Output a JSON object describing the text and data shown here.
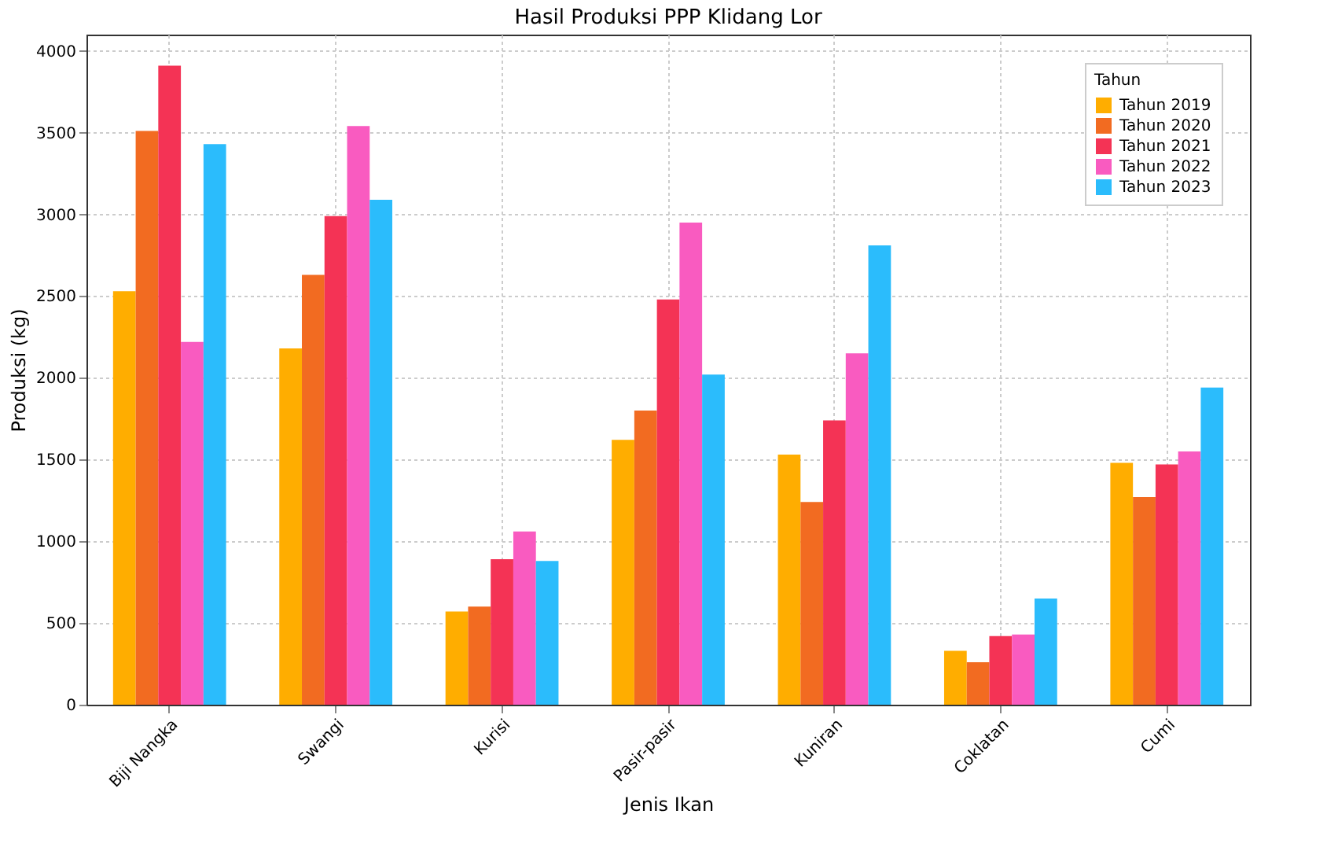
{
  "chart_data": {
    "type": "bar",
    "title": "Hasil Produksi PPP Klidang Lor",
    "xlabel": "Jenis Ikan",
    "ylabel": "Produksi (kg)",
    "legend_title": "Tahun",
    "categories": [
      "Biji Nangka",
      "Swangi",
      "Kurisi",
      "Pasir-pasir",
      "Kuniran",
      "Coklatan",
      "Cumi"
    ],
    "series": [
      {
        "name": "Tahun 2019",
        "color": "#ffad00",
        "values": [
          2530,
          2180,
          570,
          1620,
          1530,
          330,
          1480
        ]
      },
      {
        "name": "Tahun 2020",
        "color": "#f26b21",
        "values": [
          3510,
          2630,
          600,
          1800,
          1240,
          260,
          1270
        ]
      },
      {
        "name": "Tahun 2021",
        "color": "#f43355",
        "values": [
          3910,
          2990,
          890,
          2480,
          1740,
          420,
          1470
        ]
      },
      {
        "name": "Tahun 2022",
        "color": "#f95bc0",
        "values": [
          2220,
          3540,
          1060,
          2950,
          2150,
          430,
          1550
        ]
      },
      {
        "name": "Tahun 2023",
        "color": "#2bbcfc",
        "values": [
          3430,
          3090,
          880,
          2020,
          2810,
          650,
          1940
        ]
      }
    ],
    "ylim": [
      0,
      4100
    ],
    "yticks": [
      0,
      500,
      1000,
      1500,
      2000,
      2500,
      3000,
      3500,
      4000
    ],
    "grid": true,
    "legend": "top right"
  }
}
